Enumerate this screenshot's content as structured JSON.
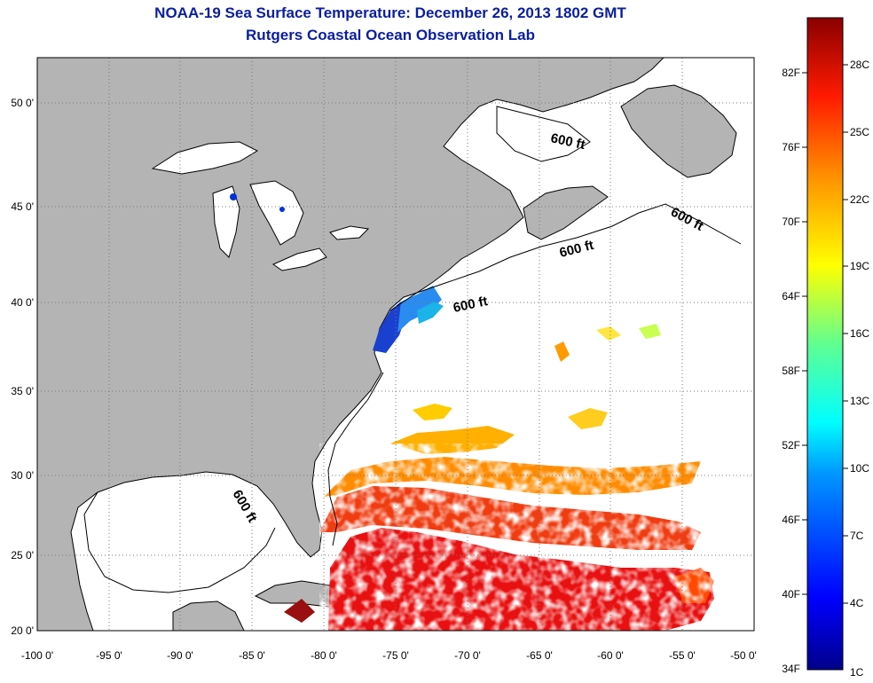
{
  "title": {
    "line1": "NOAA-19 Sea Surface Temperature:  December 26, 2013 1802 GMT",
    "line2": "Rutgers Coastal Ocean Observation Lab"
  },
  "colors": {
    "land": "#b4b4b4",
    "ocean": "#ffffff",
    "title": "#0a1ea0",
    "grid": "#7a7a7a"
  },
  "chart_data": {
    "type": "heatmap",
    "x_ticks": [
      "-100 0'",
      "-95 0'",
      "-90 0'",
      "-85 0'",
      "-80 0'",
      "-75 0'",
      "-70 0'",
      "-65 0'",
      "-60 0'",
      "-55 0'",
      "-50 0'"
    ],
    "y_ticks": [
      "50 0'",
      "45 0'",
      "40 0'",
      "35 0'",
      "30 0'",
      "25 0'",
      "20 0'"
    ],
    "xlim": [
      -100,
      -50
    ],
    "ylim": [
      20,
      52
    ],
    "grid": true,
    "contour_labels": [
      "600 ft",
      "600 ft",
      "600 ft",
      "600 ft",
      "600 ft"
    ],
    "colorbar": {
      "placement": "right",
      "f_labels": [
        "82F",
        "76F",
        "70F",
        "64F",
        "58F",
        "52F",
        "46F",
        "40F",
        "34F"
      ],
      "c_labels": [
        "28C",
        "25C",
        "22C",
        "19C",
        "16C",
        "13C",
        "10C",
        "7C",
        "4C",
        "1C"
      ],
      "range_c": [
        1,
        31
      ]
    }
  }
}
